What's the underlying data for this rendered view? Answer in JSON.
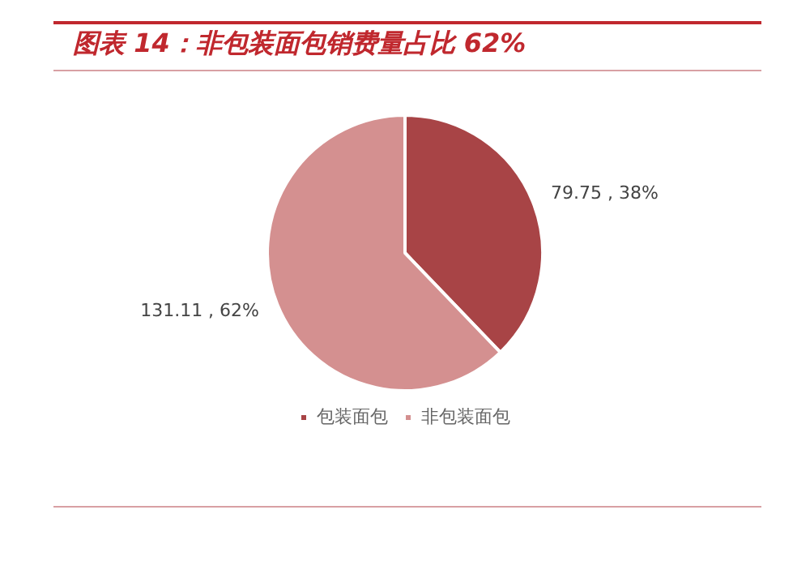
{
  "chart_data": {
    "type": "pie",
    "title": "图表 14：非包装面包销费量占比 62%",
    "categories": [
      "包装面包",
      "非包装面包"
    ],
    "values": [
      79.75,
      131.11
    ],
    "colors": [
      "#a84446",
      "#d49090"
    ],
    "value_labels": [
      "79.75 , 38%",
      "131.11 , 62%"
    ],
    "legend": "bottom"
  }
}
